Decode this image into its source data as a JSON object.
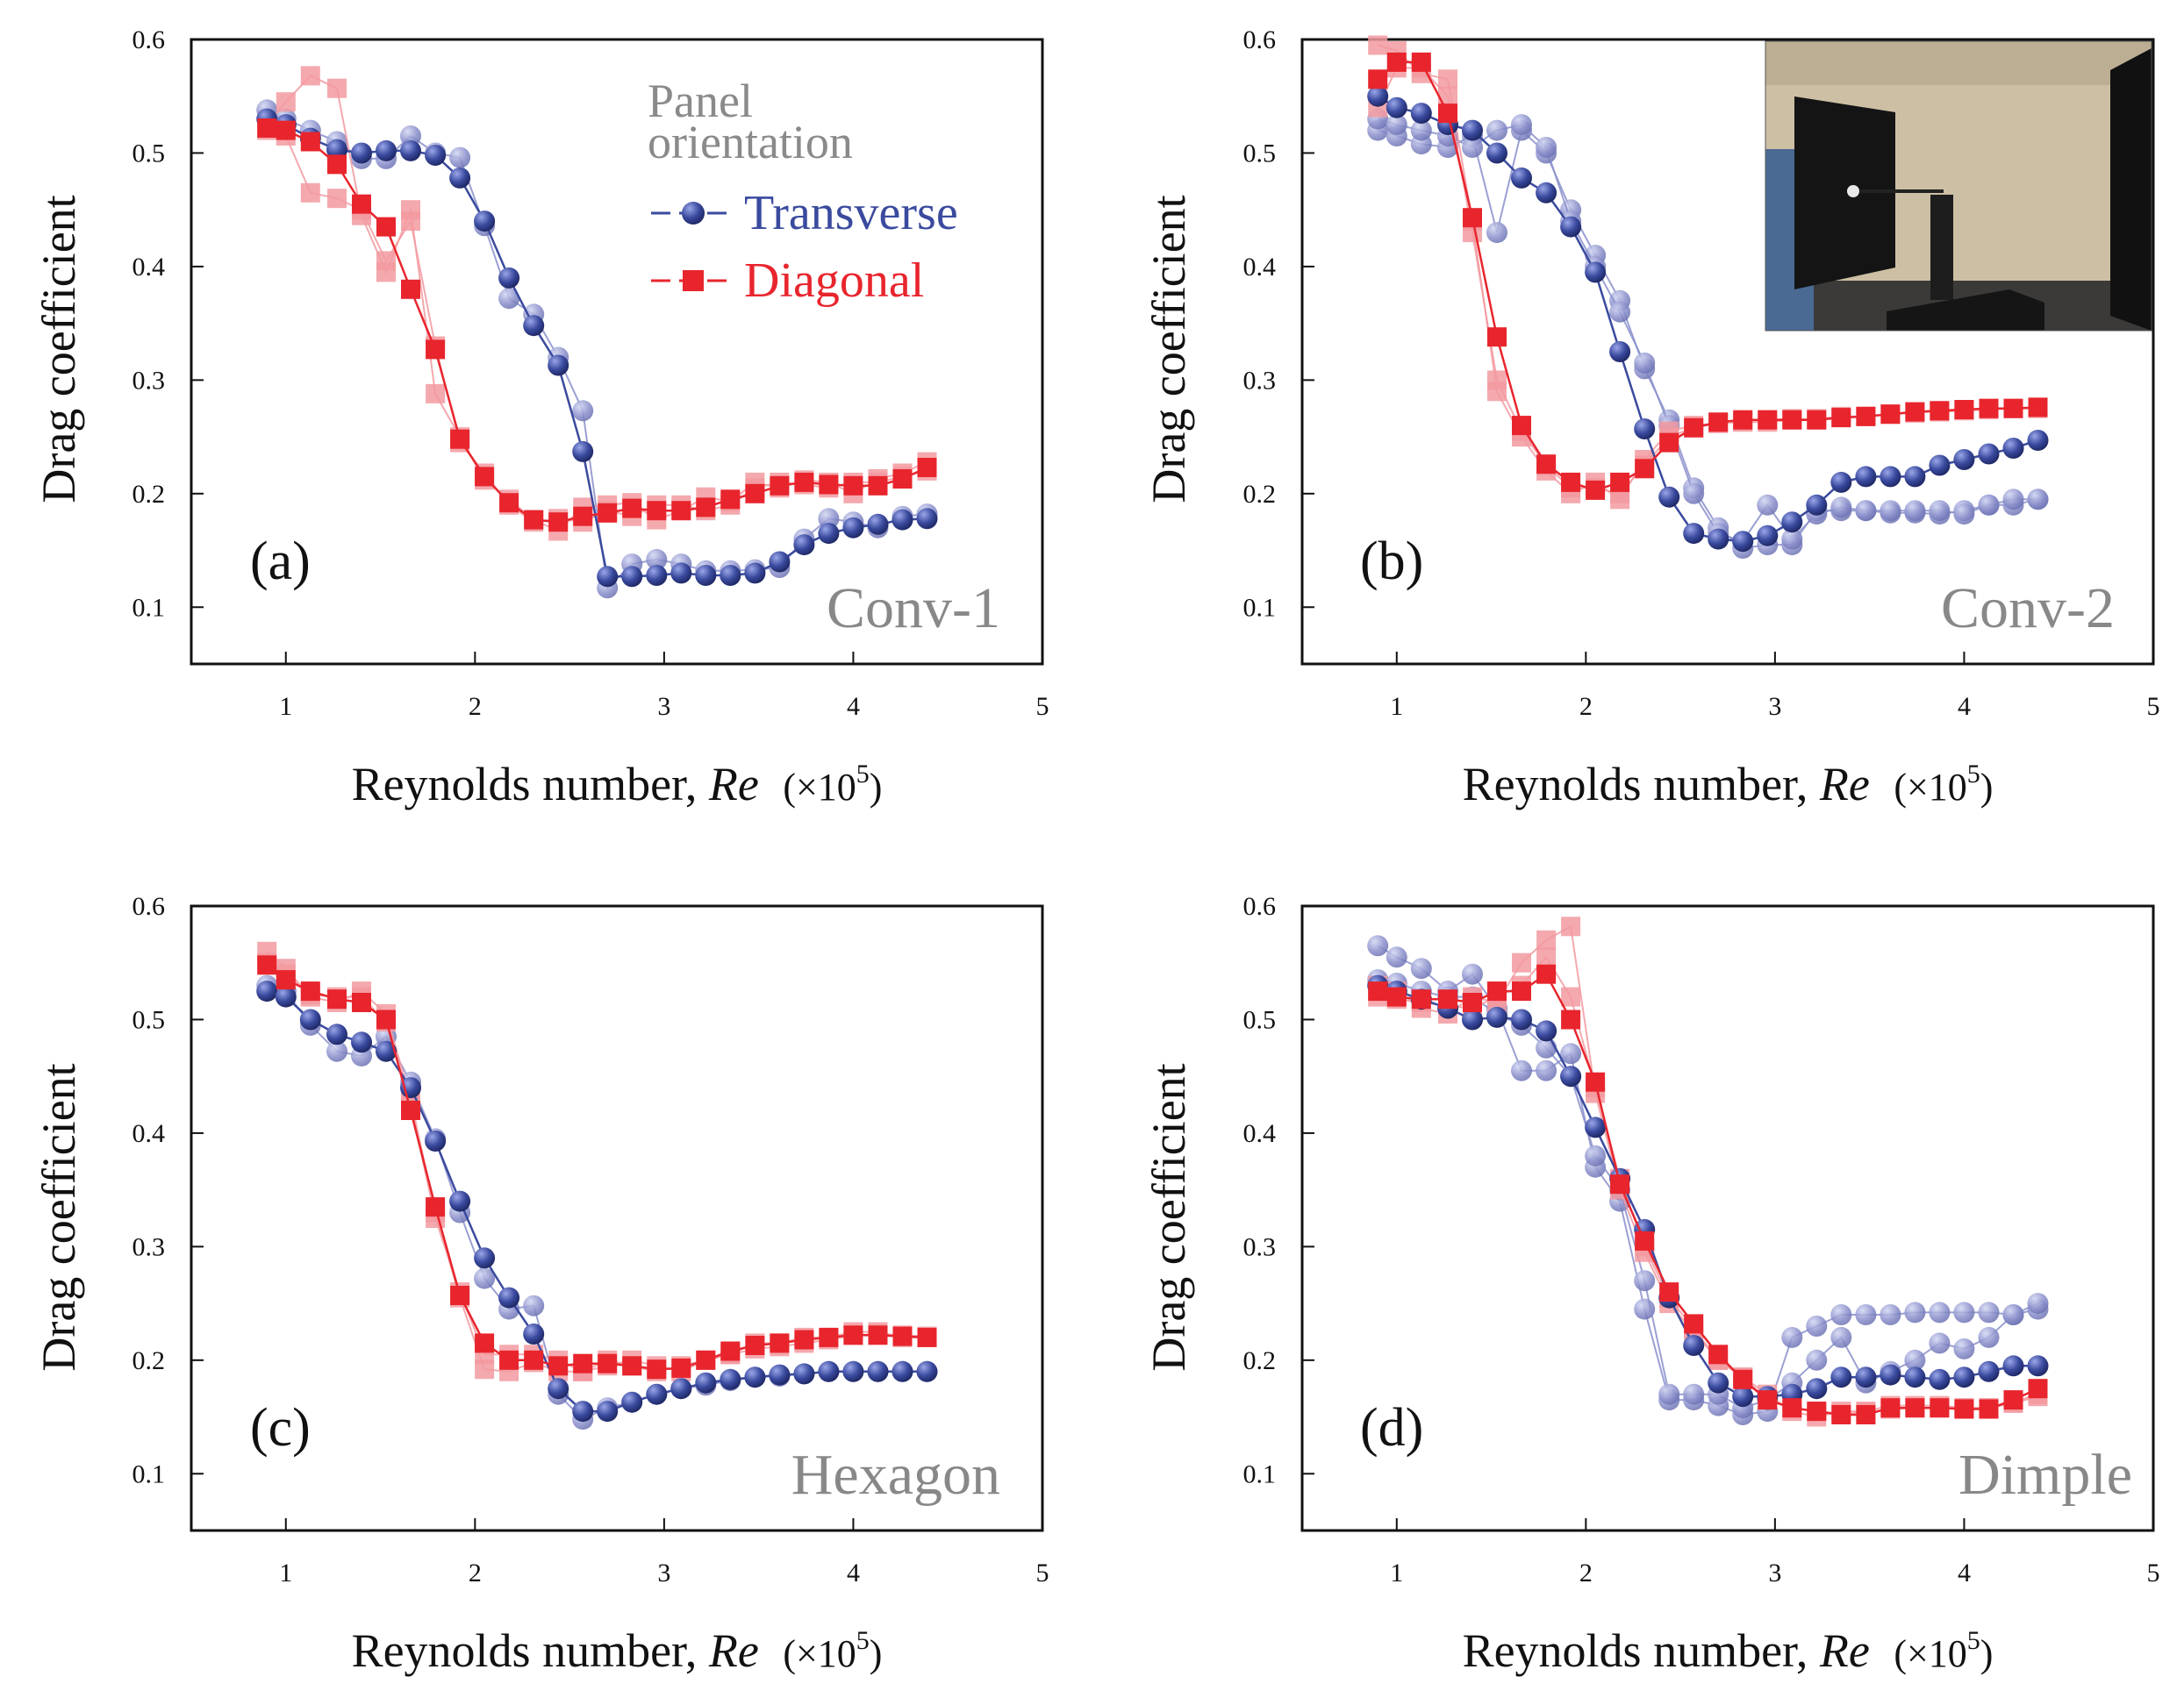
{
  "colors": {
    "transverse": "#3a4a9e",
    "transverse_light": "#8a8fcb",
    "diagonal": "#e8252d",
    "diagonal_light": "#f29aa0",
    "label_gray": "#888888"
  },
  "legend": {
    "title_line1": "Panel",
    "title_line2": "orientation",
    "transverse": "Transverse",
    "diagonal": "Diagonal"
  },
  "inset": {
    "description_icon": "wind-tunnel-photo-icon"
  },
  "chart_data": [
    {
      "type": "line",
      "panel": "(a)",
      "title": "Conv-1",
      "xlabel": "Reynolds number, Re (×10⁵)",
      "xlabel_main": "Reynolds number,",
      "xlabel_italic": "Re",
      "xlabel_unit": "(×10",
      "xlabel_exp": "5",
      "xlabel_close": ")",
      "ylabel": "Drag coefficient",
      "xlim": [
        0.5,
        5
      ],
      "ylim": [
        0.05,
        0.6
      ],
      "xticks": [
        "1",
        "2",
        "3",
        "4",
        "5"
      ],
      "yticks": [
        "0.1",
        "0.2",
        "0.3",
        "0.4",
        "0.5",
        "0.6"
      ],
      "x": [
        0.9,
        1.0,
        1.13,
        1.27,
        1.4,
        1.53,
        1.66,
        1.79,
        1.92,
        2.05,
        2.18,
        2.31,
        2.44,
        2.57,
        2.7,
        2.83,
        2.96,
        3.09,
        3.22,
        3.35,
        3.48,
        3.61,
        3.74,
        3.87,
        4.0,
        4.13,
        4.26,
        4.39
      ],
      "series": [
        {
          "name": "Transverse",
          "values": [
            0.53,
            0.525,
            0.513,
            0.503,
            0.5,
            0.502,
            0.502,
            0.498,
            0.478,
            0.44,
            0.39,
            0.348,
            0.313,
            0.237,
            0.127,
            0.127,
            0.128,
            0.13,
            0.128,
            0.128,
            0.13,
            0.14,
            0.155,
            0.165,
            0.17,
            0.173,
            0.177,
            0.178
          ]
        },
        {
          "name": "Transverse (repeat)",
          "light": true,
          "values": [
            0.538,
            0.53,
            0.52,
            0.51,
            0.495,
            0.495,
            0.515,
            0.5,
            0.496,
            0.436,
            0.372,
            0.358,
            0.32,
            0.273,
            0.117,
            0.138,
            0.142,
            0.138,
            0.132,
            0.132,
            0.133,
            0.135,
            0.16,
            0.178,
            0.175,
            0.17,
            0.18,
            0.182
          ]
        },
        {
          "name": "Diagonal",
          "values": [
            0.522,
            0.52,
            0.51,
            0.49,
            0.455,
            0.435,
            0.38,
            0.327,
            0.248,
            0.215,
            0.192,
            0.177,
            0.175,
            0.18,
            0.183,
            0.187,
            0.185,
            0.185,
            0.188,
            0.195,
            0.2,
            0.207,
            0.21,
            0.208,
            0.207,
            0.207,
            0.213,
            0.223
          ]
        },
        {
          "name": "Diagonal (repeat)",
          "light": true,
          "values": [
            0.525,
            0.545,
            0.568,
            0.557,
            0.445,
            0.395,
            0.45,
            0.288,
            0.25,
            0.212,
            0.195,
            0.177,
            0.167,
            0.188,
            0.19,
            0.192,
            0.177,
            0.185,
            0.197,
            0.193,
            0.21,
            0.205,
            0.212,
            0.21,
            0.2,
            0.213,
            0.218,
            0.228
          ]
        },
        {
          "name": "Diagonal (repeat 2)",
          "light": true,
          "values": [
            0.52,
            0.515,
            0.465,
            0.46,
            0.45,
            0.405,
            0.44,
            0.33,
            0.245,
            0.218,
            0.19,
            0.175,
            0.178,
            0.175,
            0.185,
            0.18,
            0.19,
            0.19,
            0.185,
            0.19,
            0.205,
            0.21,
            0.208,
            0.205,
            0.21,
            0.21,
            0.215,
            0.22
          ]
        }
      ]
    },
    {
      "type": "line",
      "panel": "(b)",
      "title": "Conv-2",
      "xlabel": "Reynolds number, Re (×10⁵)",
      "xlabel_main": "Reynolds number,",
      "xlabel_italic": "Re",
      "xlabel_unit": "(×10",
      "xlabel_exp": "5",
      "xlabel_close": ")",
      "ylabel": "Drag coefficient",
      "xlim": [
        0.5,
        5
      ],
      "ylim": [
        0.05,
        0.6
      ],
      "xticks": [
        "1",
        "2",
        "3",
        "4",
        "5"
      ],
      "yticks": [
        "0.1",
        "0.2",
        "0.3",
        "0.4",
        "0.5",
        "0.6"
      ],
      "x": [
        0.9,
        1.0,
        1.13,
        1.27,
        1.4,
        1.53,
        1.66,
        1.79,
        1.92,
        2.05,
        2.18,
        2.31,
        2.44,
        2.57,
        2.7,
        2.83,
        2.96,
        3.09,
        3.22,
        3.35,
        3.48,
        3.61,
        3.74,
        3.87,
        4.0,
        4.13,
        4.26,
        4.39
      ],
      "series": [
        {
          "name": "Transverse",
          "values": [
            0.55,
            0.54,
            0.535,
            0.525,
            0.52,
            0.5,
            0.478,
            0.465,
            0.435,
            0.395,
            0.325,
            0.257,
            0.197,
            0.165,
            0.16,
            0.158,
            0.163,
            0.175,
            0.19,
            0.21,
            0.215,
            0.215,
            0.215,
            0.225,
            0.23,
            0.235,
            0.24,
            0.247
          ]
        },
        {
          "name": "Transverse (repeat)",
          "light": true,
          "values": [
            0.52,
            0.515,
            0.508,
            0.505,
            0.515,
            0.43,
            0.52,
            0.5,
            0.45,
            0.41,
            0.37,
            0.31,
            0.265,
            0.205,
            0.17,
            0.152,
            0.155,
            0.155,
            0.185,
            0.185,
            0.185,
            0.183,
            0.183,
            0.182,
            0.185,
            0.19,
            0.19,
            0.195
          ]
        },
        {
          "name": "Transverse (repeat 2)",
          "light": true,
          "values": [
            0.53,
            0.525,
            0.52,
            0.515,
            0.505,
            0.52,
            0.525,
            0.505,
            0.44,
            0.4,
            0.36,
            0.315,
            0.26,
            0.2,
            0.165,
            0.158,
            0.19,
            0.16,
            0.182,
            0.188,
            0.185,
            0.185,
            0.185,
            0.185,
            0.182,
            0.19,
            0.195,
            0.195
          ]
        },
        {
          "name": "Diagonal",
          "values": [
            0.565,
            0.58,
            0.58,
            0.535,
            0.443,
            0.338,
            0.26,
            0.226,
            0.21,
            0.203,
            0.21,
            0.222,
            0.245,
            0.258,
            0.263,
            0.265,
            0.265,
            0.265,
            0.265,
            0.267,
            0.268,
            0.27,
            0.272,
            0.273,
            0.274,
            0.275,
            0.275,
            0.276
          ]
        },
        {
          "name": "Diagonal (repeat)",
          "light": true,
          "values": [
            0.595,
            0.59,
            0.57,
            0.565,
            0.44,
            0.29,
            0.25,
            0.22,
            0.2,
            0.21,
            0.195,
            0.23,
            0.255,
            0.26,
            0.262,
            0.263,
            0.263,
            0.265,
            0.266,
            0.268,
            0.268,
            0.27,
            0.272,
            0.272,
            0.273,
            0.274,
            0.275,
            0.276
          ]
        },
        {
          "name": "Diagonal (repeat 2)",
          "light": true,
          "values": [
            0.54,
            0.575,
            0.575,
            0.55,
            0.43,
            0.3,
            0.255,
            0.225,
            0.205,
            0.205,
            0.2,
            0.225,
            0.25,
            0.258,
            0.262,
            0.264,
            0.265,
            0.266,
            0.265,
            0.267,
            0.268,
            0.27,
            0.271,
            0.273,
            0.274,
            0.275,
            0.275,
            0.275
          ]
        }
      ]
    },
    {
      "type": "line",
      "panel": "(c)",
      "title": "Hexagon",
      "xlabel": "Reynolds number, Re (×10⁵)",
      "xlabel_main": "Reynolds number,",
      "xlabel_italic": "Re",
      "xlabel_unit": "(×10",
      "xlabel_exp": "5",
      "xlabel_close": ")",
      "ylabel": "Drag coefficient",
      "xlim": [
        0.5,
        5
      ],
      "ylim": [
        0.05,
        0.6
      ],
      "xticks": [
        "1",
        "2",
        "3",
        "4",
        "5"
      ],
      "yticks": [
        "0.1",
        "0.2",
        "0.3",
        "0.4",
        "0.5",
        "0.6"
      ],
      "x": [
        0.9,
        1.0,
        1.13,
        1.27,
        1.4,
        1.53,
        1.66,
        1.79,
        1.92,
        2.05,
        2.18,
        2.31,
        2.44,
        2.57,
        2.7,
        2.83,
        2.96,
        3.09,
        3.22,
        3.35,
        3.48,
        3.61,
        3.74,
        3.87,
        4.0,
        4.13,
        4.26,
        4.39
      ],
      "series": [
        {
          "name": "Transverse",
          "values": [
            0.525,
            0.52,
            0.5,
            0.487,
            0.48,
            0.472,
            0.44,
            0.393,
            0.34,
            0.29,
            0.255,
            0.223,
            0.175,
            0.155,
            0.155,
            0.163,
            0.17,
            0.175,
            0.18,
            0.183,
            0.185,
            0.187,
            0.188,
            0.19,
            0.19,
            0.19,
            0.19,
            0.19
          ]
        },
        {
          "name": "Transverse (repeat)",
          "light": true,
          "values": [
            0.53,
            0.525,
            0.495,
            0.472,
            0.468,
            0.485,
            0.445,
            0.395,
            0.33,
            0.272,
            0.245,
            0.248,
            0.17,
            0.148,
            0.158,
            0.163,
            0.17,
            0.175,
            0.178,
            0.182,
            0.185,
            0.186,
            0.188,
            0.19,
            0.19,
            0.19,
            0.19,
            0.19
          ]
        },
        {
          "name": "Diagonal",
          "values": [
            0.548,
            0.535,
            0.525,
            0.518,
            0.515,
            0.5,
            0.42,
            0.335,
            0.257,
            0.215,
            0.2,
            0.2,
            0.195,
            0.197,
            0.197,
            0.195,
            0.192,
            0.193,
            0.2,
            0.208,
            0.213,
            0.215,
            0.218,
            0.22,
            0.222,
            0.222,
            0.221,
            0.22
          ]
        },
        {
          "name": "Diagonal (repeat)",
          "light": true,
          "values": [
            0.56,
            0.545,
            0.52,
            0.515,
            0.525,
            0.505,
            0.43,
            0.33,
            0.255,
            0.192,
            0.19,
            0.198,
            0.19,
            0.19,
            0.2,
            0.195,
            0.19,
            0.195,
            0.2,
            0.205,
            0.215,
            0.215,
            0.22,
            0.22,
            0.225,
            0.225,
            0.22,
            0.22
          ]
        },
        {
          "name": "Diagonal (repeat 2)",
          "light": true,
          "values": [
            0.55,
            0.54,
            0.522,
            0.52,
            0.52,
            0.498,
            0.425,
            0.325,
            0.26,
            0.205,
            0.205,
            0.205,
            0.2,
            0.19,
            0.195,
            0.2,
            0.195,
            0.19,
            0.2,
            0.205,
            0.21,
            0.212,
            0.215,
            0.218,
            0.222,
            0.223,
            0.222,
            0.221
          ]
        }
      ]
    },
    {
      "type": "line",
      "panel": "(d)",
      "title": "Dimple",
      "xlabel": "Reynolds number, Re (×10⁵)",
      "xlabel_main": "Reynolds number,",
      "xlabel_italic": "Re",
      "xlabel_unit": "(×10",
      "xlabel_exp": "5",
      "xlabel_close": ")",
      "ylabel": "Drag coefficient",
      "xlim": [
        0.5,
        5
      ],
      "ylim": [
        0.05,
        0.6
      ],
      "xticks": [
        "1",
        "2",
        "3",
        "4",
        "5"
      ],
      "yticks": [
        "0.1",
        "0.2",
        "0.3",
        "0.4",
        "0.5",
        "0.6"
      ],
      "x": [
        0.9,
        1.0,
        1.13,
        1.27,
        1.4,
        1.53,
        1.66,
        1.79,
        1.92,
        2.05,
        2.18,
        2.31,
        2.44,
        2.57,
        2.7,
        2.83,
        2.96,
        3.09,
        3.22,
        3.35,
        3.48,
        3.61,
        3.74,
        3.87,
        4.0,
        4.13,
        4.26,
        4.39
      ],
      "series": [
        {
          "name": "Transverse",
          "values": [
            0.53,
            0.525,
            0.518,
            0.51,
            0.5,
            0.502,
            0.5,
            0.49,
            0.45,
            0.405,
            0.36,
            0.315,
            0.255,
            0.213,
            0.18,
            0.168,
            0.168,
            0.17,
            0.175,
            0.185,
            0.185,
            0.187,
            0.185,
            0.183,
            0.185,
            0.19,
            0.195,
            0.195
          ]
        },
        {
          "name": "Transverse (repeat)",
          "light": true,
          "values": [
            0.565,
            0.555,
            0.545,
            0.525,
            0.54,
            0.51,
            0.455,
            0.455,
            0.47,
            0.37,
            0.34,
            0.245,
            0.165,
            0.165,
            0.16,
            0.152,
            0.155,
            0.22,
            0.23,
            0.24,
            0.24,
            0.24,
            0.242,
            0.242,
            0.242,
            0.242,
            0.24,
            0.245
          ]
        },
        {
          "name": "Transverse (repeat 2)",
          "light": true,
          "values": [
            0.535,
            0.532,
            0.525,
            0.52,
            0.52,
            0.505,
            0.495,
            0.475,
            0.45,
            0.38,
            0.35,
            0.27,
            0.17,
            0.17,
            0.17,
            0.158,
            0.165,
            0.18,
            0.2,
            0.22,
            0.18,
            0.19,
            0.2,
            0.215,
            0.21,
            0.22,
            0.24,
            0.25
          ]
        },
        {
          "name": "Diagonal",
          "values": [
            0.525,
            0.52,
            0.518,
            0.518,
            0.515,
            0.525,
            0.525,
            0.54,
            0.5,
            0.445,
            0.355,
            0.305,
            0.26,
            0.232,
            0.205,
            0.183,
            0.165,
            0.158,
            0.155,
            0.152,
            0.152,
            0.158,
            0.158,
            0.158,
            0.157,
            0.157,
            0.165,
            0.175
          ]
        },
        {
          "name": "Diagonal (repeat)",
          "light": true,
          "values": [
            0.53,
            0.525,
            0.51,
            0.505,
            0.52,
            0.515,
            0.55,
            0.57,
            0.582,
            0.435,
            0.35,
            0.295,
            0.25,
            0.225,
            0.2,
            0.185,
            0.17,
            0.155,
            0.15,
            0.155,
            0.155,
            0.16,
            0.16,
            0.16,
            0.158,
            0.158,
            0.162,
            0.168
          ]
        },
        {
          "name": "Diagonal (repeat 2)",
          "light": true,
          "values": [
            0.52,
            0.518,
            0.515,
            0.512,
            0.51,
            0.52,
            0.53,
            0.555,
            0.52,
            0.44,
            0.36,
            0.3,
            0.255,
            0.228,
            0.2,
            0.185,
            0.165,
            0.158,
            0.155,
            0.153,
            0.154,
            0.157,
            0.158,
            0.158,
            0.158,
            0.158,
            0.163,
            0.17
          ]
        }
      ]
    }
  ]
}
